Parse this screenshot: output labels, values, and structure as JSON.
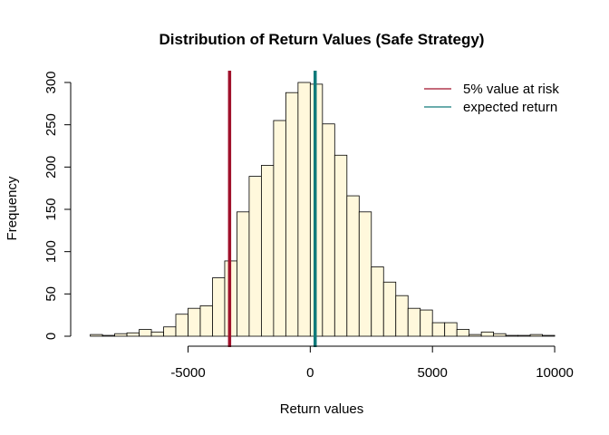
{
  "chart_data": {
    "type": "bar",
    "subtype": "histogram",
    "title": "Distribution of Return Values (Safe Strategy)",
    "xlabel": "Return values",
    "ylabel": "Frequency",
    "xlim": [
      -9000,
      10000
    ],
    "ylim": [
      0,
      310
    ],
    "bin_width": 500,
    "bin_start": -9000,
    "values": [
      2,
      1,
      3,
      4,
      8,
      5,
      11,
      26,
      33,
      36,
      69,
      89,
      147,
      189,
      202,
      255,
      288,
      300,
      298,
      251,
      214,
      166,
      147,
      82,
      64,
      48,
      33,
      31,
      16,
      16,
      8,
      2,
      5,
      3,
      1,
      1,
      2,
      1
    ],
    "x_ticks": [
      -5000,
      0,
      5000,
      10000
    ],
    "x_tick_labels": [
      "-5000",
      "0",
      "5000",
      "10000"
    ],
    "y_ticks": [
      0,
      50,
      100,
      150,
      200,
      250,
      300
    ],
    "y_tick_labels": [
      "0",
      "50",
      "100",
      "150",
      "200",
      "250",
      "300"
    ],
    "bar_fill": "#FFF8DC",
    "bar_stroke": "#000000",
    "grid": false,
    "legend_position": "top-right",
    "vlines": [
      {
        "name": "5% value at risk",
        "x": -3300,
        "color": "#A0102A"
      },
      {
        "name": "expected return",
        "x": 200,
        "color": "#107A7A"
      }
    ]
  }
}
